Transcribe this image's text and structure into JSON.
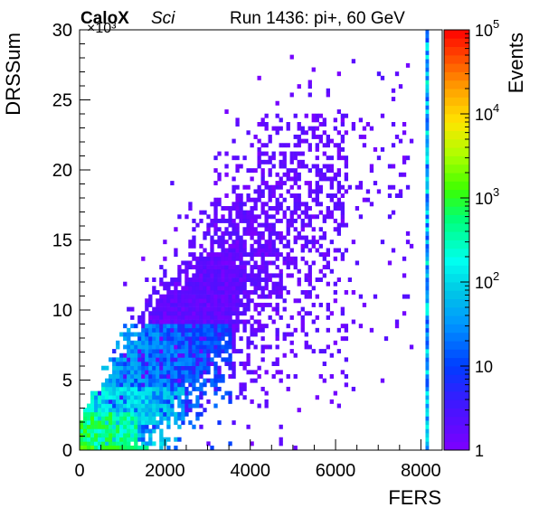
{
  "chart_data": {
    "type": "heatmap",
    "title_bold": "CaloX",
    "title_italic": "Sci",
    "run_label": "Run 1436: pi+, 60 GeV",
    "xlabel": "FERS",
    "ylabel": "DRSSum",
    "y_multiplier_label": "×10³",
    "colorbar_label": "Events",
    "xlim": [
      0,
      8500
    ],
    "ylim": [
      0,
      30
    ],
    "x_ticks": [
      0,
      2000,
      4000,
      6000,
      8000
    ],
    "y_ticks": [
      0,
      5,
      10,
      15,
      20,
      25,
      30
    ],
    "zlim": [
      1,
      100000
    ],
    "z_scale": "log",
    "colorbar_ticks": [
      {
        "value": 1,
        "base": "1",
        "exp": ""
      },
      {
        "value": 10,
        "base": "10",
        "exp": ""
      },
      {
        "value": 100,
        "base": "10",
        "exp": "2"
      },
      {
        "value": 1000,
        "base": "10",
        "exp": "3"
      },
      {
        "value": 10000,
        "base": "10",
        "exp": "4"
      },
      {
        "value": 100000,
        "base": "10",
        "exp": "5"
      }
    ],
    "grid": false,
    "bin_width_x": 85,
    "bin_width_y": 0.3,
    "density_regions": [
      {
        "x_range": [
          0,
          1400
        ],
        "y_range": [
          0,
          2.7
        ],
        "count_range": [
          30,
          3000
        ]
      },
      {
        "x_range": [
          500,
          2500
        ],
        "y_range": [
          0.5,
          4
        ],
        "count_range": [
          5,
          200
        ]
      },
      {
        "x_range": [
          1500,
          3500
        ],
        "y_range": [
          2,
          8
        ],
        "count_range": [
          1,
          40
        ]
      },
      {
        "x_range": [
          3000,
          6000
        ],
        "y_range": [
          5,
          22
        ],
        "count_range": [
          1,
          3
        ]
      }
    ],
    "overflow_column": {
      "x": 8150,
      "y_range": [
        0,
        30
      ],
      "count_range": [
        10,
        300
      ]
    }
  }
}
